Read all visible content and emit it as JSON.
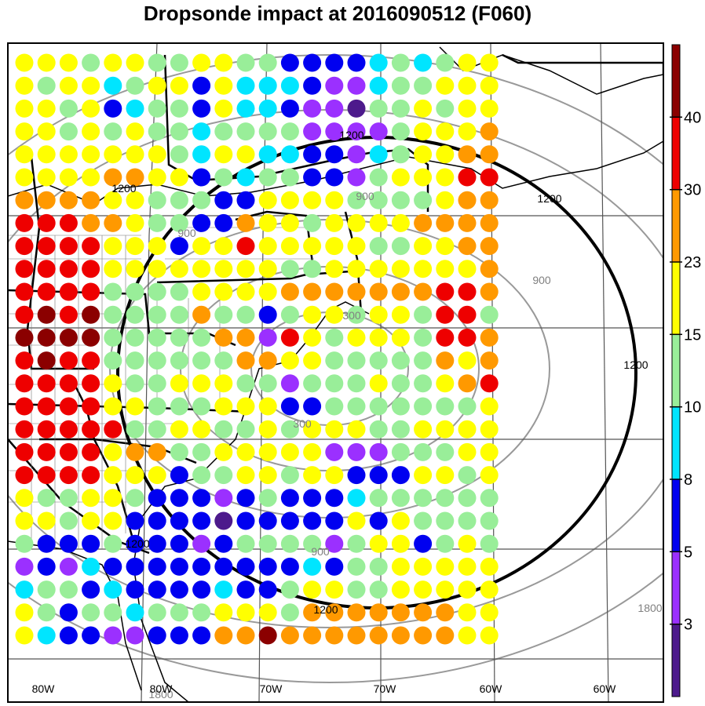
{
  "title": "Dropsonde impact at 2016090512 (F060)",
  "colorbar": {
    "colors": [
      "#4d1a8c",
      "#9b30ff",
      "#0000f0",
      "#00e5ff",
      "#99ee99",
      "#ffff00",
      "#ff9900",
      "#ee0000",
      "#8b0000"
    ],
    "tick_labels": [
      "3",
      "5",
      "8",
      "10",
      "15",
      "23",
      "30",
      "40"
    ]
  },
  "range_rings": {
    "labels_gray": [
      "300",
      "300",
      "900",
      "900",
      "900",
      "900",
      "1800",
      "1800"
    ],
    "labels_black": [
      "1200",
      "1200",
      "1200",
      "1200",
      "1200",
      "1200"
    ]
  },
  "longitude_labels": [
    "80W",
    "80W",
    "70W",
    "70W",
    "60W",
    "60W"
  ],
  "dot_grid": {
    "legend": "0=purple-dark 1=purple 2=blue 3=cyan 4=lightgreen 5=yellow 6=orange 7=red 8=darkred",
    "rows": [
      "5554554455442222343455",
      "5455345525333211344555",
      "5545234425332110445455",
      "5545454434444111145556",
      "5555555435533221345566",
      "5555665524344221455577",
      "6666554442255554444566",
      "7776654422655455556666",
      "7777555255755555445566",
      "7777555555554455555556",
      "7777444455556666666776",
      "7878444464424554554774",
      "8888444446617545554776",
      "7877444444665544444656",
      "7777544555441444544567",
      "7777554445552244444445",
      "7777744554454555445555",
      "7777566445555511144455",
      "7777555244554552225545",
      "5445542221242223444444",
      "5545522220222225254444",
      "4222422212444414552454",
      "1213222222222324455555",
      "3442322223224554455555",
      "5424434445554666666655",
      "5322112226686666666655"
    ]
  }
}
